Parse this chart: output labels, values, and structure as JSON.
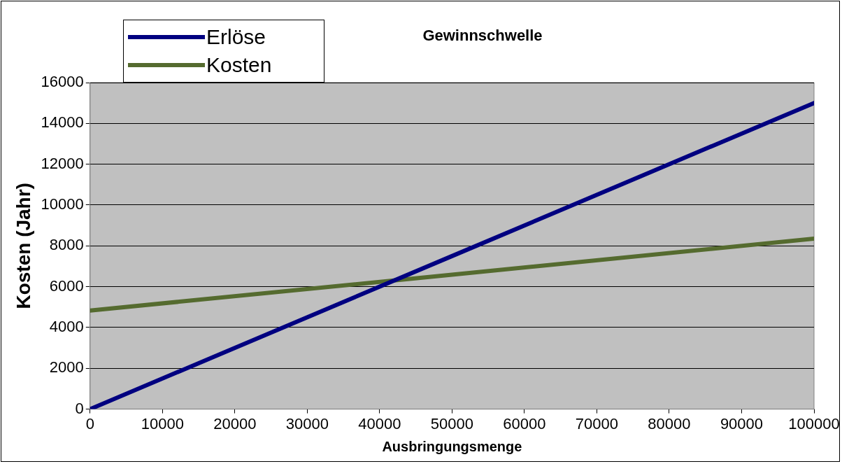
{
  "chart_data": {
    "type": "line",
    "title": "Gewinnschwelle",
    "xlabel": "Ausbringungsmenge",
    "ylabel": "Kosten (Jahr)",
    "series": [
      {
        "name": "Erlöse",
        "color": "#000080",
        "x": [
          0,
          50000,
          100000
        ],
        "values": [
          0,
          7500,
          15000
        ]
      },
      {
        "name": "Kosten",
        "color": "#556b2f",
        "x": [
          0,
          50000,
          100000
        ],
        "values": [
          4830,
          6590,
          8350
        ]
      }
    ],
    "xlim": [
      0,
      100000
    ],
    "xticks": [
      0,
      10000,
      20000,
      30000,
      40000,
      50000,
      60000,
      70000,
      80000,
      90000,
      100000
    ],
    "ylim": [
      0,
      16000
    ],
    "yticks": [
      0,
      2000,
      4000,
      6000,
      8000,
      10000,
      12000,
      14000,
      16000
    ],
    "grid": "y",
    "legend": "top left",
    "marker": "none",
    "line_style": "solid"
  }
}
